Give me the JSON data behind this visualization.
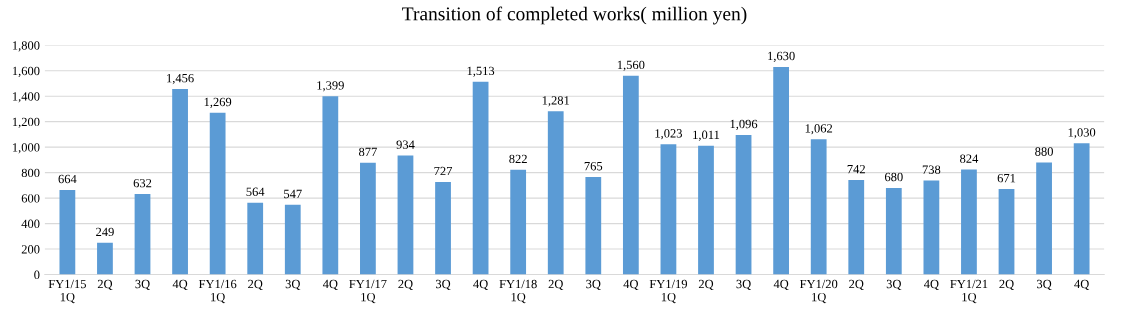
{
  "chart_data": {
    "type": "bar",
    "title": "Transition of completed works( million yen)",
    "categories": [
      "FY1/15\n1Q",
      "2Q",
      "3Q",
      "4Q",
      "FY1/16\n1Q",
      "2Q",
      "3Q",
      "4Q",
      "FY1/17\n1Q",
      "2Q",
      "3Q",
      "4Q",
      "FY1/18\n1Q",
      "2Q",
      "3Q",
      "4Q",
      "FY1/19\n1Q",
      "2Q",
      "3Q",
      "4Q",
      "FY1/20\n1Q",
      "2Q",
      "3Q",
      "4Q",
      "FY1/21\n1Q",
      "2Q",
      "3Q",
      "4Q"
    ],
    "values": [
      664,
      249,
      632,
      1456,
      1269,
      564,
      547,
      1399,
      877,
      934,
      727,
      1513,
      822,
      1281,
      765,
      1560,
      1023,
      1011,
      1096,
      1630,
      1062,
      742,
      680,
      738,
      824,
      671,
      880,
      1030
    ],
    "value_labels": [
      "664",
      "249",
      "632",
      "1,456",
      "1,269",
      "564",
      "547",
      "1,399",
      "877",
      "934",
      "727",
      "1,513",
      "822",
      "1,281",
      "765",
      "1,560",
      "1,023",
      "1,011",
      "1,096",
      "1,630",
      "1,062",
      "742",
      "680",
      "738",
      "824",
      "671",
      "880",
      "1,030"
    ],
    "color": "#5b9bd5",
    "ylim": [
      0,
      1800
    ],
    "yticks": [
      0,
      200,
      400,
      600,
      800,
      {
        "value": 1000,
        "label": "1,000"
      },
      {
        "value": 1200,
        "label": "1,200"
      },
      {
        "value": 1400,
        "label": "1,400"
      },
      {
        "value": 1600,
        "label": "1,600"
      },
      {
        "value": 1800,
        "label": "1,800"
      }
    ],
    "grid": "y"
  }
}
